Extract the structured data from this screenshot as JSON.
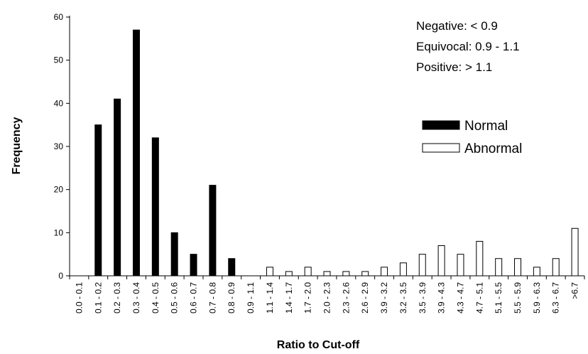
{
  "chart_data": {
    "type": "bar",
    "xlabel": "Ratio to Cut-off",
    "ylabel": "Frequency",
    "ylim": [
      0,
      60
    ],
    "yticks": [
      0,
      10,
      20,
      30,
      40,
      50,
      60
    ],
    "categories": [
      "0.0 - 0.1",
      "0.1 - 0.2",
      "0.2 - 0.3",
      "0.3 - 0.4",
      "0.4 - 0.5",
      "0.5 - 0.6",
      "0.6 - 0.7",
      "0.7 - 0.8",
      "0.8 - 0.9",
      "0.9 - 1.1",
      "1.1 - 1.4",
      "1.4 - 1.7",
      "1.7 - 2.0",
      "2.0 - 2.3",
      "2.3 - 2.6",
      "2.6 - 2.9",
      "3.9 - 3.2",
      "3.2 - 3.5",
      "3.5 - 3.9",
      "3.9 - 4.3",
      "4.3 - 4.7",
      "4.7 - 5.1",
      "5.1 - 5.5",
      "5.5 - 5.9",
      "5.9 - 6.3",
      "6.3 - 6.7",
      ">6.7"
    ],
    "series": [
      {
        "name": "Normal",
        "color": "#000000",
        "fill": "#000000",
        "values": [
          0,
          35,
          41,
          57,
          32,
          10,
          5,
          21,
          4,
          0,
          0,
          0,
          0,
          0,
          0,
          0,
          0,
          0,
          0,
          0,
          0,
          0,
          0,
          0,
          0,
          0,
          0
        ]
      },
      {
        "name": "Abnormal",
        "color": "#000000",
        "fill": "#ffffff",
        "values": [
          0,
          0,
          0,
          0,
          0,
          0,
          0,
          0,
          0,
          0,
          2,
          1,
          2,
          1,
          1,
          1,
          2,
          3,
          5,
          7,
          5,
          8,
          4,
          4,
          2,
          4,
          11
        ]
      }
    ],
    "annotations": [
      "Negative: < 0.9",
      "Equivocal: 0.9 - 1.1",
      "Positive: > 1.1"
    ],
    "legend_position": "right",
    "grid": false
  }
}
